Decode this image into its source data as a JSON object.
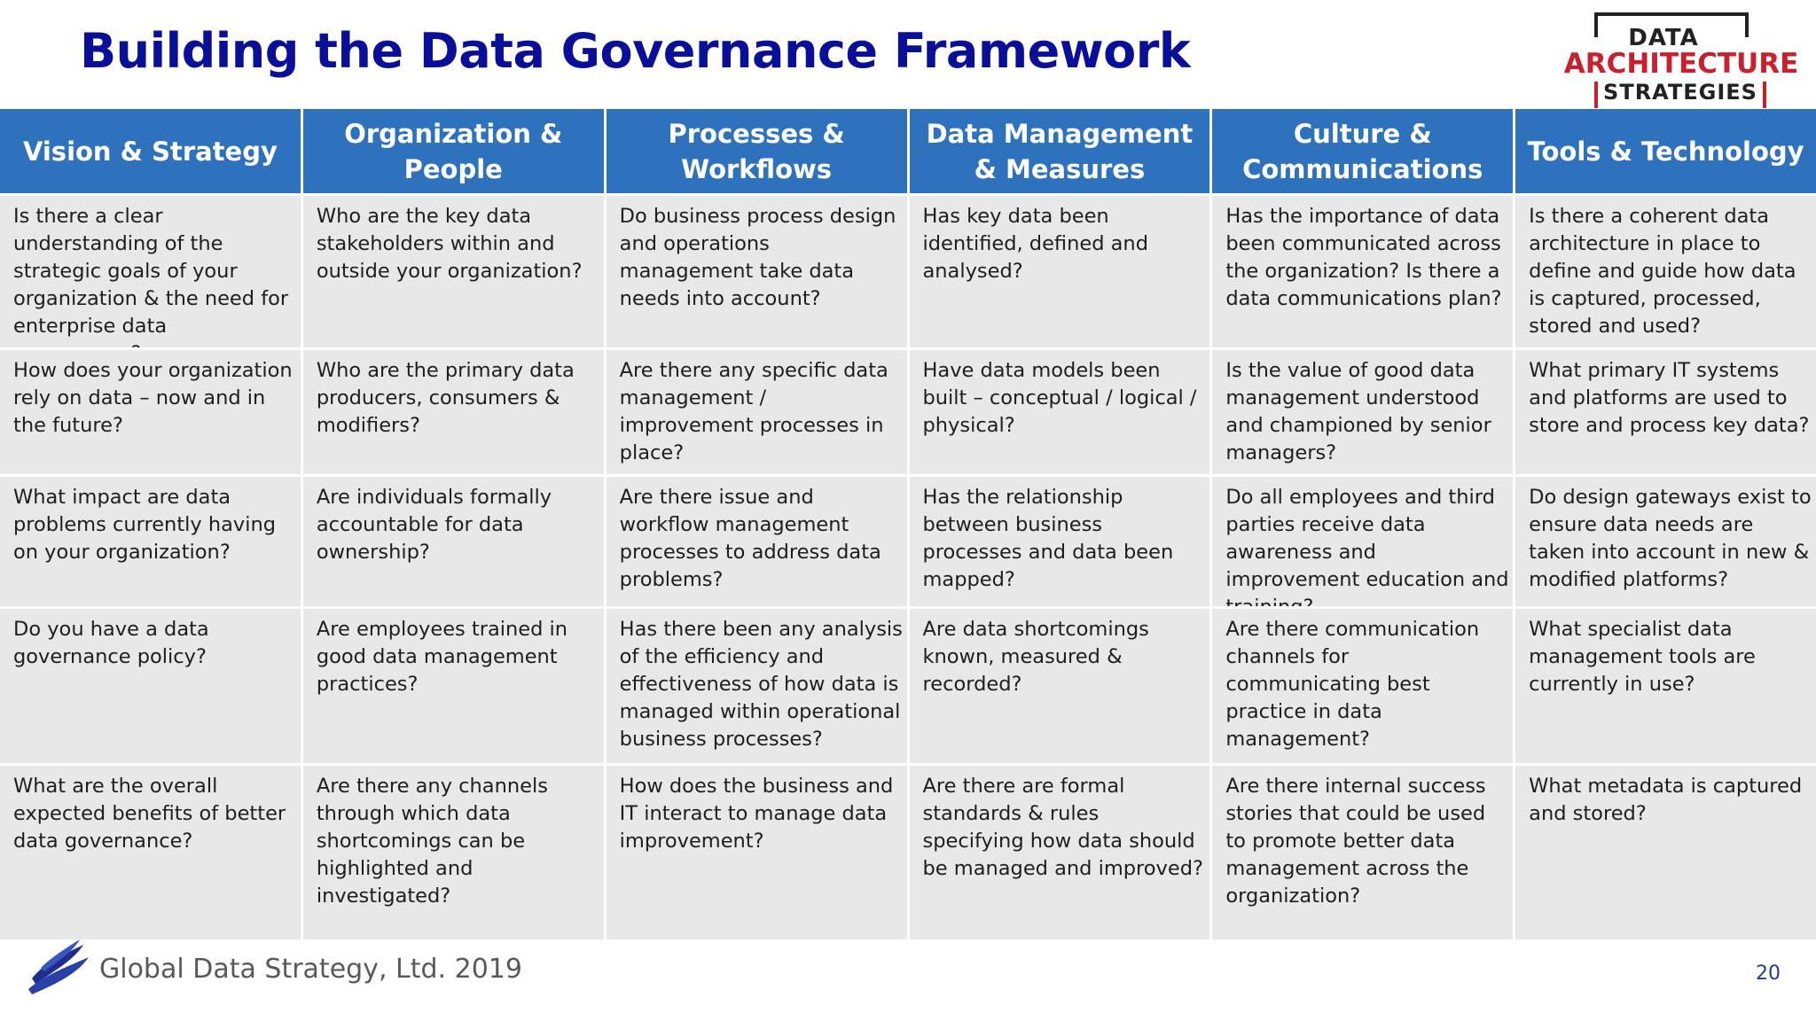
{
  "slide": {
    "title": "Building the Data Governance Framework",
    "page_number": "20",
    "footer_text": "Global Data Strategy, Ltd. 2019"
  },
  "logo": {
    "line1": "DATA",
    "line2": "ARCHITECTURE",
    "line3": "STRATEGIES",
    "colors": {
      "dark": "#222222",
      "red": "#c8202d"
    }
  },
  "colors": {
    "title": "#0a0f9a",
    "header_bg": "#2e72bd",
    "cell_bg": "#e8e8e8",
    "footer_text": "#595959",
    "page_number": "#1f3e8c"
  },
  "table": {
    "headers": [
      "Vision & Strategy",
      "Organization & People",
      "Processes & Workflows",
      "Data Management & Measures",
      "Culture & Communications",
      "Tools & Technology"
    ],
    "rows": [
      [
        "Is there a clear understanding of the strategic goals of your organization & the need for enterprise data governance?",
        "Who are the key data stakeholders within and outside your organization?",
        "Do business process design and operations management take data needs into account?",
        "Has key data been identified, defined and analysed?",
        "Has the importance of data been communicated across the organization?  Is there a data communications plan?",
        "Is there a coherent data architecture in place to define and guide how data is captured, processed, stored and used?"
      ],
      [
        "How does your organization rely on data – now and in the future?",
        "Who are the primary data producers, consumers & modifiers?",
        "Are there any specific data management / improvement processes in place?",
        "Have data models been built – conceptual / logical / physical?",
        "Is the value of good data management understood and championed by senior managers?",
        "What primary IT systems and platforms are used to store and process key data?"
      ],
      [
        "What impact are data problems currently having on your organization?",
        "Are individuals formally accountable for data ownership?",
        "Are there issue and workflow management processes to address data problems?",
        "Has the relationship between business processes and data been mapped?",
        "Do all employees and third parties receive data awareness and improvement education and training?",
        "Do design gateways exist to ensure data needs are taken into account in new & modified platforms?"
      ],
      [
        "Do you have a data governance policy?",
        "Are employees trained in good data management practices?",
        "Has there been any analysis of the efficiency and effectiveness of how data is managed within operational business processes?",
        "Are data shortcomings known, measured & recorded?",
        "Are there communication channels for communicating best practice in data management?",
        "What specialist data management tools are currently in use?"
      ],
      [
        "What are the overall expected benefits of better data governance?",
        "Are there any channels through which data shortcomings can be highlighted and investigated?",
        "How does the business and IT interact to manage data improvement?",
        "Are there are formal standards & rules specifying how data should be managed and improved?",
        "Are there internal success stories that could be used to promote better data management across the organization?",
        "What metadata is captured and stored?"
      ]
    ]
  },
  "icons": {
    "footer_logo": "swoosh-logo-icon"
  }
}
